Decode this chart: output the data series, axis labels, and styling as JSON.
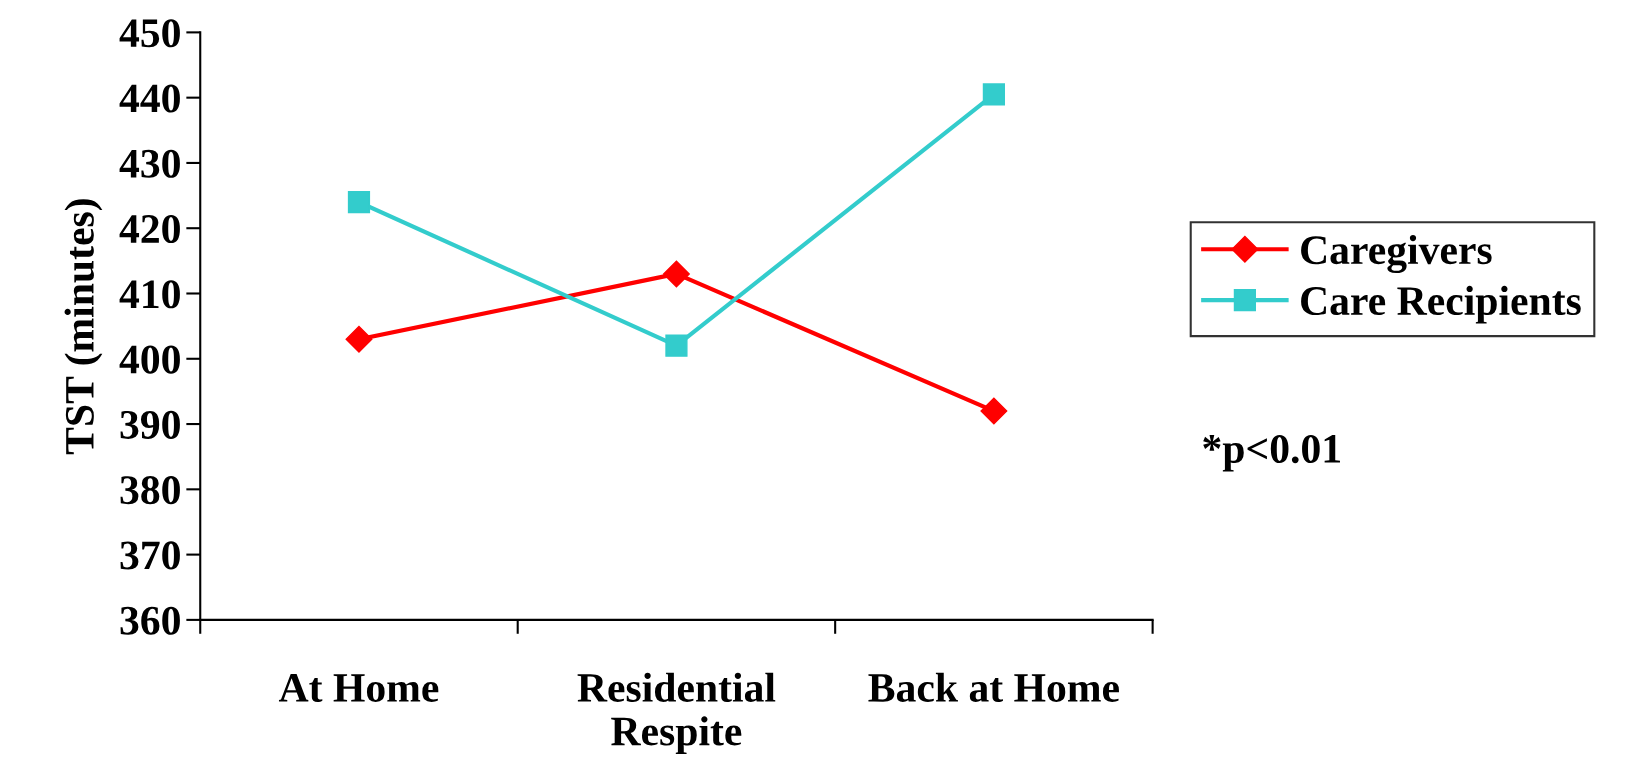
{
  "chart_data": {
    "type": "line",
    "ylabel": "TST (minutes)",
    "categories": [
      "At Home",
      "Residential\nRespite",
      "Back at Home"
    ],
    "series": [
      {
        "name": "Caregivers",
        "color": "#ff0000",
        "marker": "diamond",
        "values": [
          403,
          413,
          392
        ]
      },
      {
        "name": "Care Recipients",
        "color": "#33cccc",
        "marker": "square",
        "values": [
          424,
          402,
          440.5
        ]
      }
    ],
    "ylim": [
      360,
      450
    ],
    "yticks": [
      360,
      370,
      380,
      390,
      400,
      410,
      420,
      430,
      440,
      450
    ],
    "grid": false,
    "legend": "right",
    "line_style": "solid",
    "annotations": [
      "*p<0.01"
    ]
  }
}
